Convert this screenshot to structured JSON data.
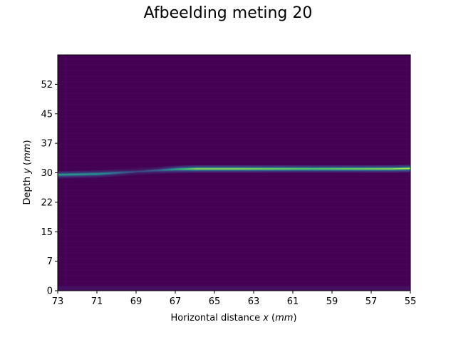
{
  "chart_data": {
    "type": "heatmap",
    "title": "Afbeelding meting 20",
    "xlabel_main": "Horizontal distance ",
    "xlabel_var": "x",
    "xlabel_unit": "mm",
    "ylabel_main": "Depth ",
    "ylabel_var": "y",
    "ylabel_unit": "mm",
    "xlim": [
      73,
      55
    ],
    "ylim": [
      0,
      60
    ],
    "x_ticks": [
      "73",
      "71",
      "69",
      "67",
      "65",
      "63",
      "61",
      "59",
      "57",
      "55"
    ],
    "x_tick_values": [
      73,
      71,
      69,
      67,
      65,
      63,
      61,
      59,
      57,
      55
    ],
    "y_ticks": [
      "0",
      "7",
      "15",
      "22",
      "30",
      "37",
      "45",
      "52"
    ],
    "y_tick_values": [
      0,
      7.5,
      15,
      22.5,
      30,
      37.5,
      45,
      52.5
    ],
    "colormap": "viridis",
    "background_color": "#440154",
    "band": {
      "description": "bright reflection line",
      "points": [
        {
          "x": 73,
          "y": 29.5,
          "intensity": 0.55
        },
        {
          "x": 71,
          "y": 29.7,
          "intensity": 0.5
        },
        {
          "x": 70,
          "y": 30.0,
          "intensity": 0.35
        },
        {
          "x": 69,
          "y": 30.3,
          "intensity": 0.2
        },
        {
          "x": 68,
          "y": 30.6,
          "intensity": 0.3
        },
        {
          "x": 67,
          "y": 30.9,
          "intensity": 0.6
        },
        {
          "x": 66,
          "y": 31.0,
          "intensity": 0.85
        },
        {
          "x": 64,
          "y": 31.0,
          "intensity": 0.85
        },
        {
          "x": 62,
          "y": 31.0,
          "intensity": 0.8
        },
        {
          "x": 60,
          "y": 31.0,
          "intensity": 0.75
        },
        {
          "x": 58,
          "y": 31.0,
          "intensity": 0.8
        },
        {
          "x": 56,
          "y": 31.0,
          "intensity": 0.85
        },
        {
          "x": 55,
          "y": 31.1,
          "intensity": 0.9
        }
      ]
    }
  }
}
